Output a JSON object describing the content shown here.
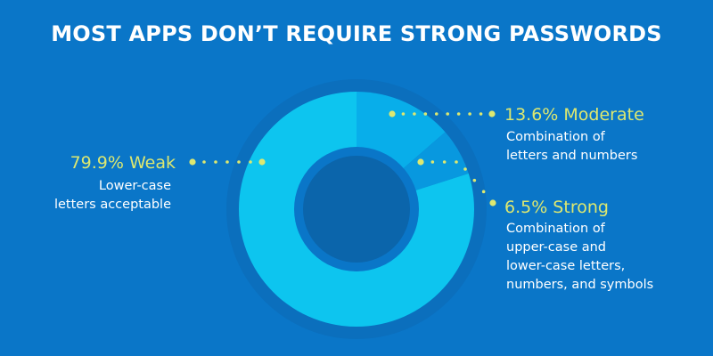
{
  "title": "MOST APPS DON’T REQUIRE STRONG PASSWORDS",
  "colors": {
    "background": "#0a76c8",
    "ring_outer": "#0b6fbd",
    "hole": "#0a76c8",
    "hole_inner": "#0b65ab",
    "weak": "#0dc5ef",
    "moderate": "#08aeea",
    "strong": "#0898df",
    "accent": "#dde870"
  },
  "chart_data": {
    "type": "pie",
    "donut": true,
    "title": "MOST APPS DON’T REQUIRE STRONG PASSWORDS",
    "slices": [
      {
        "label": "Weak",
        "value": 79.9,
        "value_label": "79.9% Weak",
        "description": [
          "Lower-case",
          "letters acceptable"
        ]
      },
      {
        "label": "Moderate",
        "value": 13.6,
        "value_label": "13.6% Moderate",
        "description": [
          "Combination of",
          "letters and numbers"
        ]
      },
      {
        "label": "Strong",
        "value": 6.5,
        "value_label": "6.5% Strong",
        "description": [
          "Combination of",
          "upper-case and",
          "lower-case letters,",
          "numbers, and symbols"
        ]
      }
    ],
    "legend": "callouts"
  }
}
